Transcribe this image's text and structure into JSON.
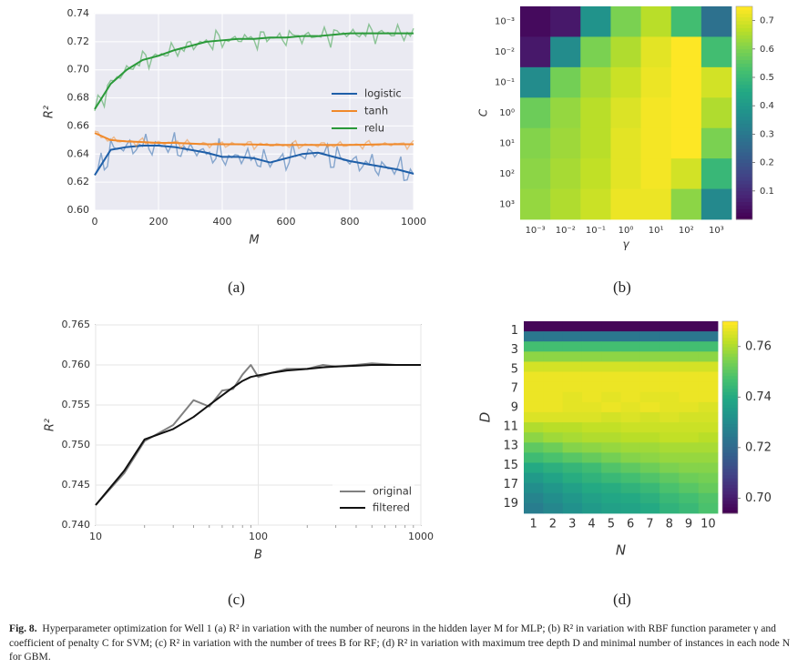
{
  "panels": {
    "a": "(a)",
    "b": "(b)",
    "c": "(c)",
    "d": "(d)"
  },
  "caption": {
    "label": "Fig. 8.",
    "text": "Hyperparameter optimization for Well 1 (a) R² in variation with the number of neurons in the hidden layer M for MLP; (b) R² in variation with RBF function parameter γ and coefficient of penalty C for SVM; (c) R² in variation with the number of trees B for RF; (d) R² in variation with maximum tree depth D and minimal number of instances in each node N for GBM."
  },
  "chart_data": [
    {
      "id": "a",
      "type": "line",
      "title": "",
      "xlabel": "M",
      "ylabel": "R²",
      "xlim": [
        0,
        1000
      ],
      "ylim": [
        0.6,
        0.74
      ],
      "xticks": [
        0,
        200,
        400,
        600,
        800,
        1000
      ],
      "yticks": [
        0.6,
        0.62,
        0.64,
        0.66,
        0.68,
        0.7,
        0.72,
        0.74
      ],
      "grid": true,
      "legend": "center-right",
      "series": [
        {
          "name": "logistic",
          "color": "#1f5fa8",
          "x": [
            0,
            50,
            100,
            150,
            200,
            250,
            300,
            350,
            400,
            450,
            500,
            550,
            600,
            650,
            700,
            750,
            800,
            850,
            900,
            950,
            1000
          ],
          "values": [
            0.625,
            0.643,
            0.645,
            0.646,
            0.646,
            0.645,
            0.643,
            0.641,
            0.638,
            0.638,
            0.637,
            0.634,
            0.637,
            0.64,
            0.641,
            0.638,
            0.635,
            0.633,
            0.631,
            0.629,
            0.626
          ]
        },
        {
          "name": "tanh",
          "color": "#f0892a",
          "x": [
            0,
            50,
            100,
            150,
            200,
            250,
            300,
            350,
            400,
            450,
            500,
            550,
            600,
            650,
            700,
            750,
            800,
            850,
            900,
            950,
            1000
          ],
          "values": [
            0.655,
            0.65,
            0.649,
            0.6485,
            0.648,
            0.648,
            0.6475,
            0.647,
            0.647,
            0.647,
            0.6468,
            0.6465,
            0.6465,
            0.6465,
            0.6465,
            0.6465,
            0.6465,
            0.6467,
            0.647,
            0.647,
            0.647
          ]
        },
        {
          "name": "relu",
          "color": "#2b9a3a",
          "x": [
            0,
            50,
            100,
            150,
            200,
            250,
            300,
            350,
            400,
            450,
            500,
            550,
            600,
            650,
            700,
            750,
            800,
            850,
            900,
            950,
            1000
          ],
          "values": [
            0.672,
            0.69,
            0.7,
            0.707,
            0.71,
            0.714,
            0.717,
            0.72,
            0.721,
            0.722,
            0.722,
            0.723,
            0.723,
            0.724,
            0.724,
            0.725,
            0.726,
            0.726,
            0.726,
            0.726,
            0.726
          ]
        }
      ]
    },
    {
      "id": "b",
      "type": "heatmap",
      "xlabel": "γ",
      "ylabel": "C",
      "x_ticklabels": [
        "10⁻³",
        "10⁻²",
        "10⁻¹",
        "10⁰",
        "10¹",
        "10²",
        "10³"
      ],
      "y_ticklabels": [
        "10⁻³",
        "10⁻²",
        "10⁻¹",
        "10⁰",
        "10¹",
        "10²",
        "10³"
      ],
      "colorbar_ticks": [
        0.1,
        0.2,
        0.3,
        0.4,
        0.5,
        0.6,
        0.7
      ],
      "colorbar_range": [
        0.0,
        0.75
      ],
      "colormap": "viridis",
      "values": [
        [
          0.02,
          0.05,
          0.38,
          0.6,
          0.67,
          0.52,
          0.28
        ],
        [
          0.05,
          0.36,
          0.6,
          0.66,
          0.72,
          0.75,
          0.52
        ],
        [
          0.36,
          0.59,
          0.65,
          0.69,
          0.73,
          0.75,
          0.7
        ],
        [
          0.58,
          0.63,
          0.67,
          0.71,
          0.74,
          0.75,
          0.66
        ],
        [
          0.61,
          0.64,
          0.67,
          0.72,
          0.74,
          0.75,
          0.6
        ],
        [
          0.62,
          0.65,
          0.68,
          0.72,
          0.74,
          0.7,
          0.5
        ],
        [
          0.63,
          0.66,
          0.69,
          0.73,
          0.73,
          0.62,
          0.35
        ]
      ]
    },
    {
      "id": "c",
      "type": "line",
      "xlabel": "B",
      "ylabel": "R²",
      "xscale": "log",
      "xlim": [
        10,
        1000
      ],
      "ylim": [
        0.74,
        0.765
      ],
      "xticks": [
        10,
        100,
        1000
      ],
      "yticks": [
        0.74,
        0.745,
        0.75,
        0.755,
        0.76,
        0.765
      ],
      "grid": true,
      "legend": "lower-right",
      "series": [
        {
          "name": "original",
          "color": "#808080",
          "x": [
            10,
            15,
            20,
            30,
            40,
            50,
            60,
            70,
            80,
            90,
            100,
            120,
            150,
            200,
            250,
            300,
            400,
            500,
            700,
            1000
          ],
          "values": [
            0.7425,
            0.7465,
            0.7505,
            0.7525,
            0.7556,
            0.7548,
            0.7568,
            0.757,
            0.7588,
            0.76,
            0.7585,
            0.759,
            0.7595,
            0.7595,
            0.76,
            0.7598,
            0.76,
            0.7602,
            0.76,
            0.76
          ]
        },
        {
          "name": "filtered",
          "color": "#111111",
          "x": [
            10,
            15,
            20,
            30,
            40,
            50,
            60,
            70,
            80,
            90,
            100,
            120,
            150,
            200,
            250,
            300,
            400,
            500,
            700,
            1000
          ],
          "values": [
            0.7425,
            0.7468,
            0.7507,
            0.752,
            0.7535,
            0.755,
            0.7562,
            0.7572,
            0.758,
            0.7585,
            0.7587,
            0.759,
            0.7593,
            0.7595,
            0.7597,
            0.7598,
            0.7599,
            0.76,
            0.76,
            0.76
          ]
        }
      ]
    },
    {
      "id": "d",
      "type": "heatmap",
      "xlabel": "N",
      "ylabel": "D",
      "x_ticklabels": [
        "1",
        "2",
        "3",
        "4",
        "5",
        "6",
        "7",
        "8",
        "9",
        "10"
      ],
      "y_ticklabels": [
        "1",
        "3",
        "5",
        "7",
        "9",
        "11",
        "13",
        "15",
        "17",
        "19"
      ],
      "colorbar_ticks": [
        0.7,
        0.72,
        0.74,
        0.76
      ],
      "colorbar_range": [
        0.694,
        0.77
      ],
      "colormap": "viridis",
      "values": [
        [
          0.695,
          0.695,
          0.695,
          0.695,
          0.695,
          0.695,
          0.695,
          0.695,
          0.695,
          0.695
        ],
        [
          0.724,
          0.724,
          0.724,
          0.724,
          0.724,
          0.724,
          0.724,
          0.724,
          0.724,
          0.724
        ],
        [
          0.747,
          0.747,
          0.747,
          0.747,
          0.747,
          0.747,
          0.747,
          0.747,
          0.747,
          0.747
        ],
        [
          0.757,
          0.757,
          0.757,
          0.757,
          0.757,
          0.757,
          0.757,
          0.757,
          0.757,
          0.757
        ],
        [
          0.765,
          0.765,
          0.765,
          0.765,
          0.765,
          0.765,
          0.765,
          0.765,
          0.765,
          0.765
        ],
        [
          0.768,
          0.768,
          0.768,
          0.768,
          0.768,
          0.768,
          0.768,
          0.768,
          0.768,
          0.768
        ],
        [
          0.768,
          0.768,
          0.768,
          0.768,
          0.768,
          0.768,
          0.768,
          0.768,
          0.768,
          0.768
        ],
        [
          0.768,
          0.768,
          0.767,
          0.768,
          0.767,
          0.768,
          0.767,
          0.767,
          0.768,
          0.768
        ],
        [
          0.768,
          0.768,
          0.767,
          0.767,
          0.768,
          0.767,
          0.768,
          0.767,
          0.767,
          0.766
        ],
        [
          0.766,
          0.766,
          0.766,
          0.766,
          0.765,
          0.766,
          0.765,
          0.766,
          0.765,
          0.765
        ],
        [
          0.761,
          0.762,
          0.762,
          0.763,
          0.763,
          0.764,
          0.764,
          0.764,
          0.764,
          0.764
        ],
        [
          0.757,
          0.759,
          0.76,
          0.761,
          0.761,
          0.762,
          0.762,
          0.763,
          0.763,
          0.762
        ],
        [
          0.751,
          0.753,
          0.756,
          0.757,
          0.758,
          0.759,
          0.759,
          0.76,
          0.76,
          0.76
        ],
        [
          0.746,
          0.748,
          0.75,
          0.752,
          0.754,
          0.756,
          0.757,
          0.758,
          0.758,
          0.758
        ],
        [
          0.74,
          0.742,
          0.744,
          0.746,
          0.749,
          0.751,
          0.753,
          0.755,
          0.756,
          0.756
        ],
        [
          0.735,
          0.738,
          0.741,
          0.743,
          0.745,
          0.747,
          0.749,
          0.751,
          0.753,
          0.754
        ],
        [
          0.731,
          0.734,
          0.737,
          0.74,
          0.741,
          0.743,
          0.745,
          0.748,
          0.75,
          0.752
        ],
        [
          0.728,
          0.731,
          0.734,
          0.737,
          0.739,
          0.74,
          0.742,
          0.745,
          0.747,
          0.749
        ],
        [
          0.726,
          0.729,
          0.732,
          0.735,
          0.737,
          0.738,
          0.74,
          0.743,
          0.745,
          0.748
        ]
      ]
    }
  ]
}
